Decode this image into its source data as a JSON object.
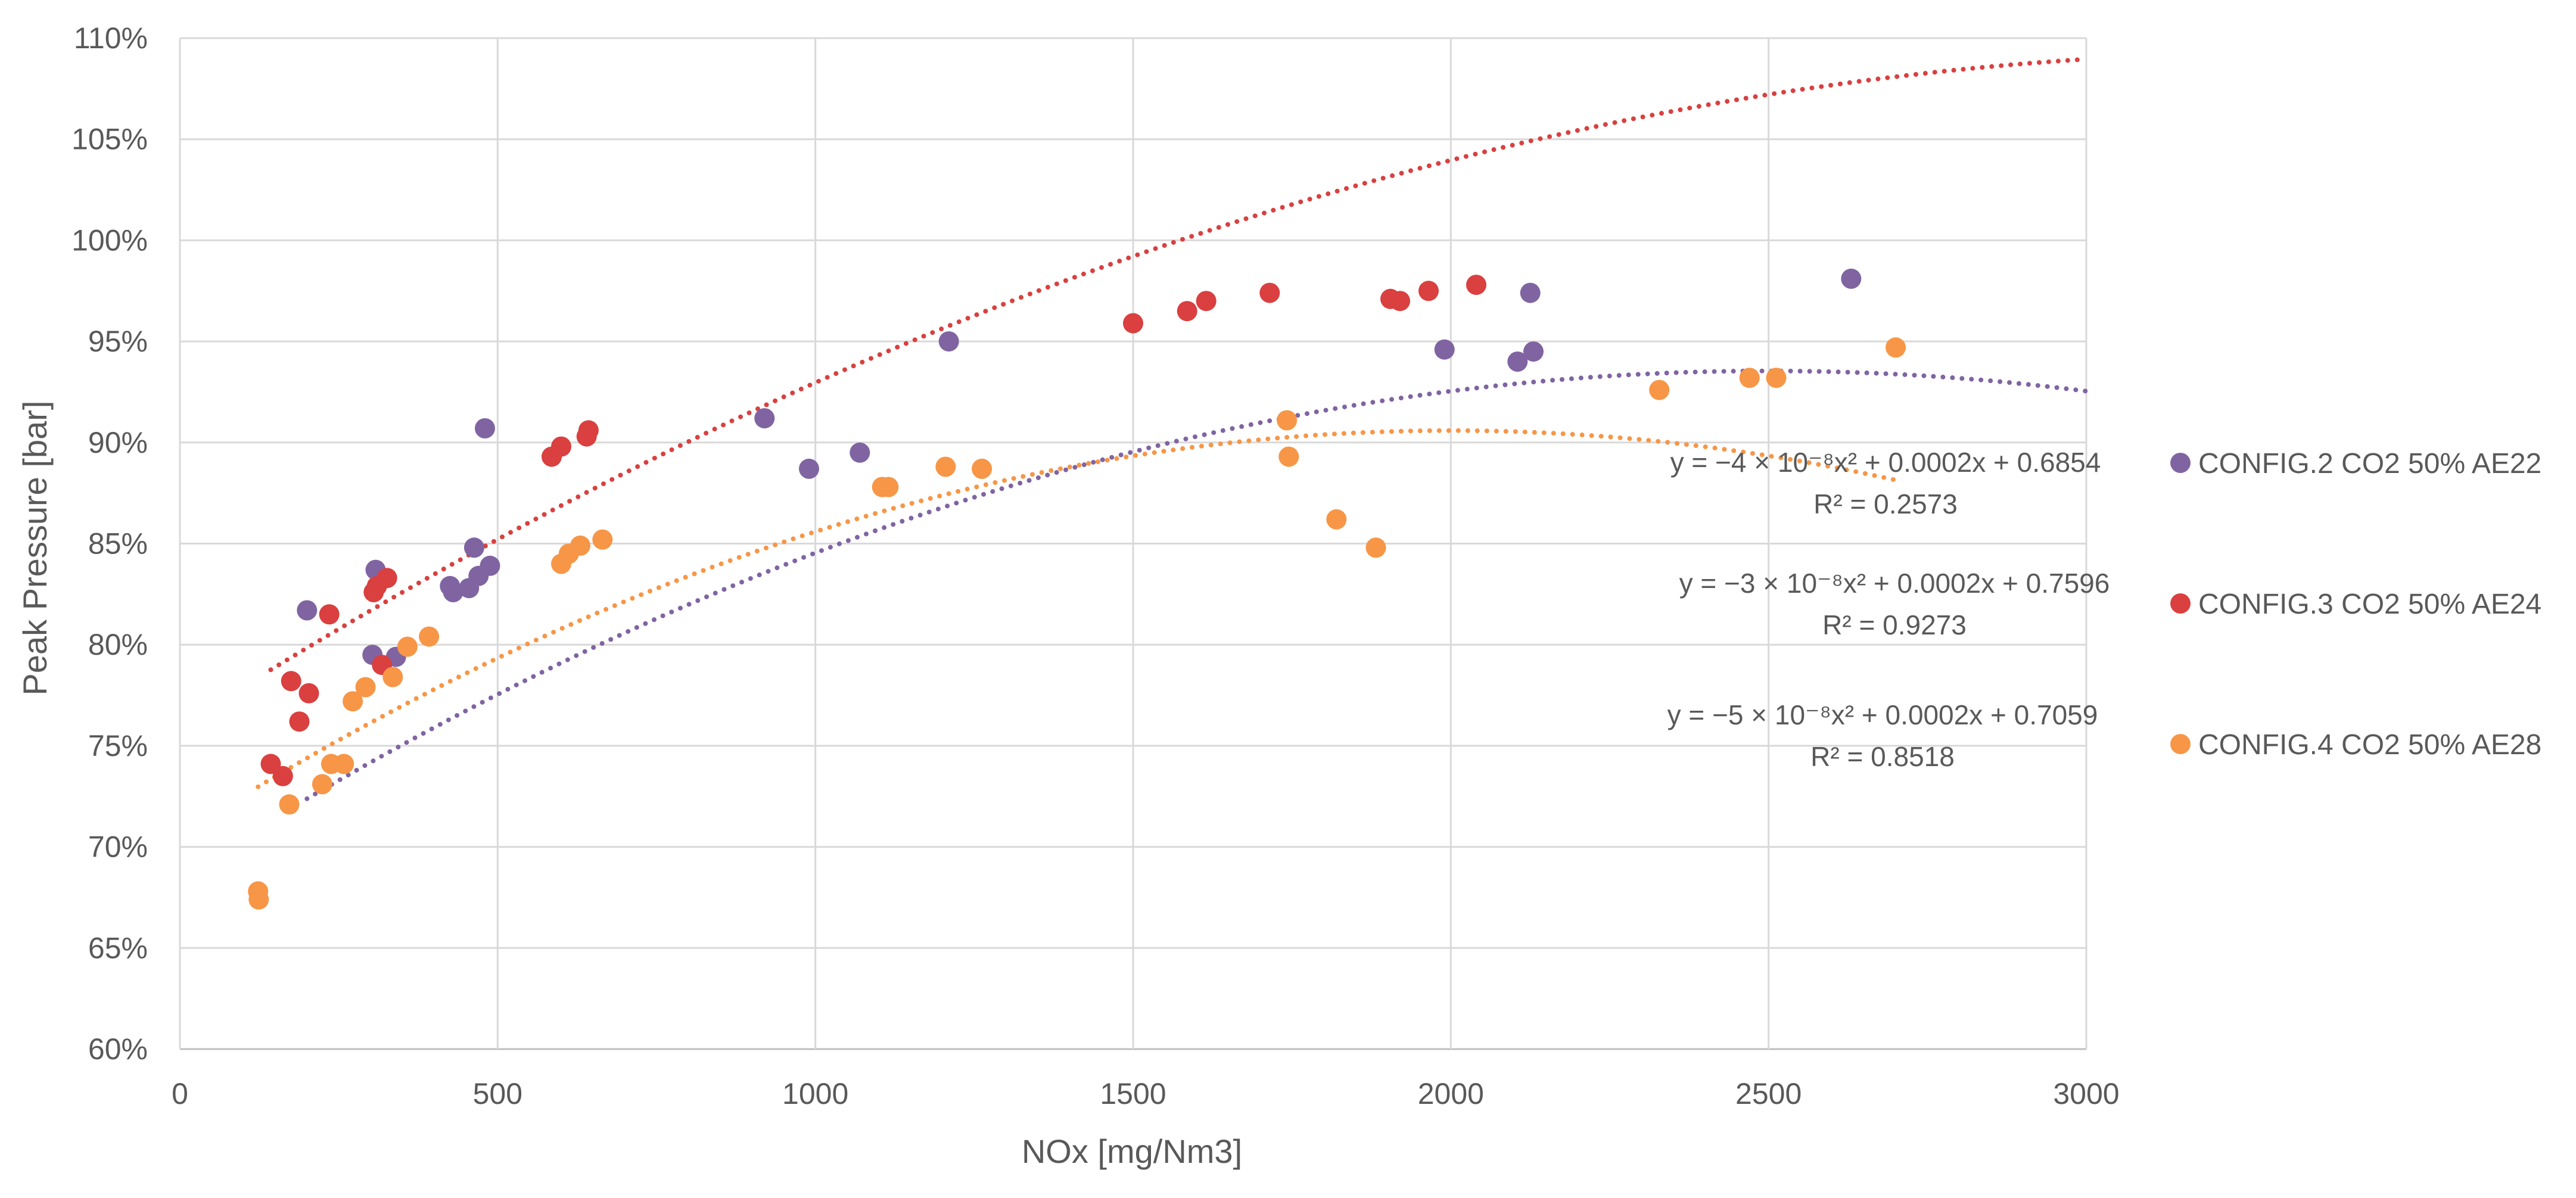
{
  "chart_data": {
    "type": "scatter",
    "title": "",
    "xlabel": "NOx [mg/Nm3]",
    "ylabel": "Peak Pressure [bar]",
    "xlim": [
      0,
      3000
    ],
    "ylim": [
      0.6,
      1.1
    ],
    "x_ticks": [
      0,
      500,
      1000,
      1500,
      2000,
      2500,
      3000
    ],
    "x_tick_labels": [
      "0",
      "500",
      "1000",
      "1500",
      "2000",
      "2500",
      "3000"
    ],
    "y_ticks": [
      0.6,
      0.65,
      0.7,
      0.75,
      0.8,
      0.85,
      0.9,
      0.95,
      1.0,
      1.05,
      1.1
    ],
    "y_tick_labels": [
      "60%",
      "65%",
      "70%",
      "75%",
      "80%",
      "85%",
      "90%",
      "95%",
      "100%",
      "105%",
      "110%"
    ],
    "grid": true,
    "legend_position": "right",
    "series": [
      {
        "name": "CONFIG.2 CO2 50% AE22",
        "color": "#8064a2",
        "points": [
          [
            200,
            0.817
          ],
          [
            303,
            0.795
          ],
          [
            308,
            0.837
          ],
          [
            340,
            0.794
          ],
          [
            425,
            0.829
          ],
          [
            430,
            0.826
          ],
          [
            455,
            0.828
          ],
          [
            463,
            0.848
          ],
          [
            470,
            0.834
          ],
          [
            480,
            0.907
          ],
          [
            488,
            0.839
          ],
          [
            920,
            0.912
          ],
          [
            990,
            0.887
          ],
          [
            1070,
            0.895
          ],
          [
            1210,
            0.95
          ],
          [
            1990,
            0.946
          ],
          [
            2105,
            0.94
          ],
          [
            2125,
            0.974
          ],
          [
            2130,
            0.945
          ],
          [
            2630,
            0.981
          ]
        ],
        "trendline": {
          "a": -4e-08,
          "b": 0.0002,
          "c": 0.6854,
          "x_range": [
            200,
            3000
          ],
          "equation": "y = −4 × 10⁻⁸x² + 0.0002x + 0.6854",
          "r2": "R² = 0.2573"
        }
      },
      {
        "name": "CONFIG.3 CO2 50% AE24",
        "color": "#d9403f",
        "points": [
          [
            143,
            0.741
          ],
          [
            162,
            0.735
          ],
          [
            175,
            0.782
          ],
          [
            188,
            0.762
          ],
          [
            203,
            0.776
          ],
          [
            235,
            0.815
          ],
          [
            305,
            0.826
          ],
          [
            310,
            0.829
          ],
          [
            318,
            0.79
          ],
          [
            326,
            0.833
          ],
          [
            585,
            0.893
          ],
          [
            600,
            0.898
          ],
          [
            640,
            0.903
          ],
          [
            643,
            0.906
          ],
          [
            1500,
            0.959
          ],
          [
            1585,
            0.965
          ],
          [
            1615,
            0.97
          ],
          [
            1715,
            0.974
          ],
          [
            1905,
            0.971
          ],
          [
            1920,
            0.97
          ],
          [
            1965,
            0.975
          ],
          [
            2040,
            0.978
          ]
        ],
        "trendline": {
          "a": -3e-08,
          "b": 0.0002,
          "c": 0.7596,
          "x_range": [
            143,
            3000
          ],
          "equation": "y = −3 × 10⁻⁸x² + 0.0002x + 0.7596",
          "r2": "R² = 0.9273"
        }
      },
      {
        "name": "CONFIG.4 CO2 50% AE28",
        "color": "#f79646",
        "points": [
          [
            123,
            0.678
          ],
          [
            124,
            0.674
          ],
          [
            172,
            0.721
          ],
          [
            224,
            0.731
          ],
          [
            238,
            0.741
          ],
          [
            258,
            0.741
          ],
          [
            272,
            0.772
          ],
          [
            292,
            0.779
          ],
          [
            335,
            0.784
          ],
          [
            358,
            0.799
          ],
          [
            392,
            0.804
          ],
          [
            600,
            0.84
          ],
          [
            612,
            0.845
          ],
          [
            630,
            0.849
          ],
          [
            665,
            0.852
          ],
          [
            1105,
            0.878
          ],
          [
            1115,
            0.878
          ],
          [
            1205,
            0.888
          ],
          [
            1262,
            0.887
          ],
          [
            1742,
            0.911
          ],
          [
            1745,
            0.893
          ],
          [
            1820,
            0.862
          ],
          [
            1882,
            0.848
          ],
          [
            2328,
            0.926
          ],
          [
            2470,
            0.932
          ],
          [
            2512,
            0.932
          ],
          [
            2700,
            0.947
          ]
        ],
        "trendline": {
          "a": -5e-08,
          "b": 0.0002,
          "c": 0.7059,
          "x_range": [
            123,
            2700
          ],
          "equation": "y = −5 × 10⁻⁸x² + 0.0002x + 0.7059",
          "r2": "R² = 0.8518"
        }
      }
    ]
  }
}
